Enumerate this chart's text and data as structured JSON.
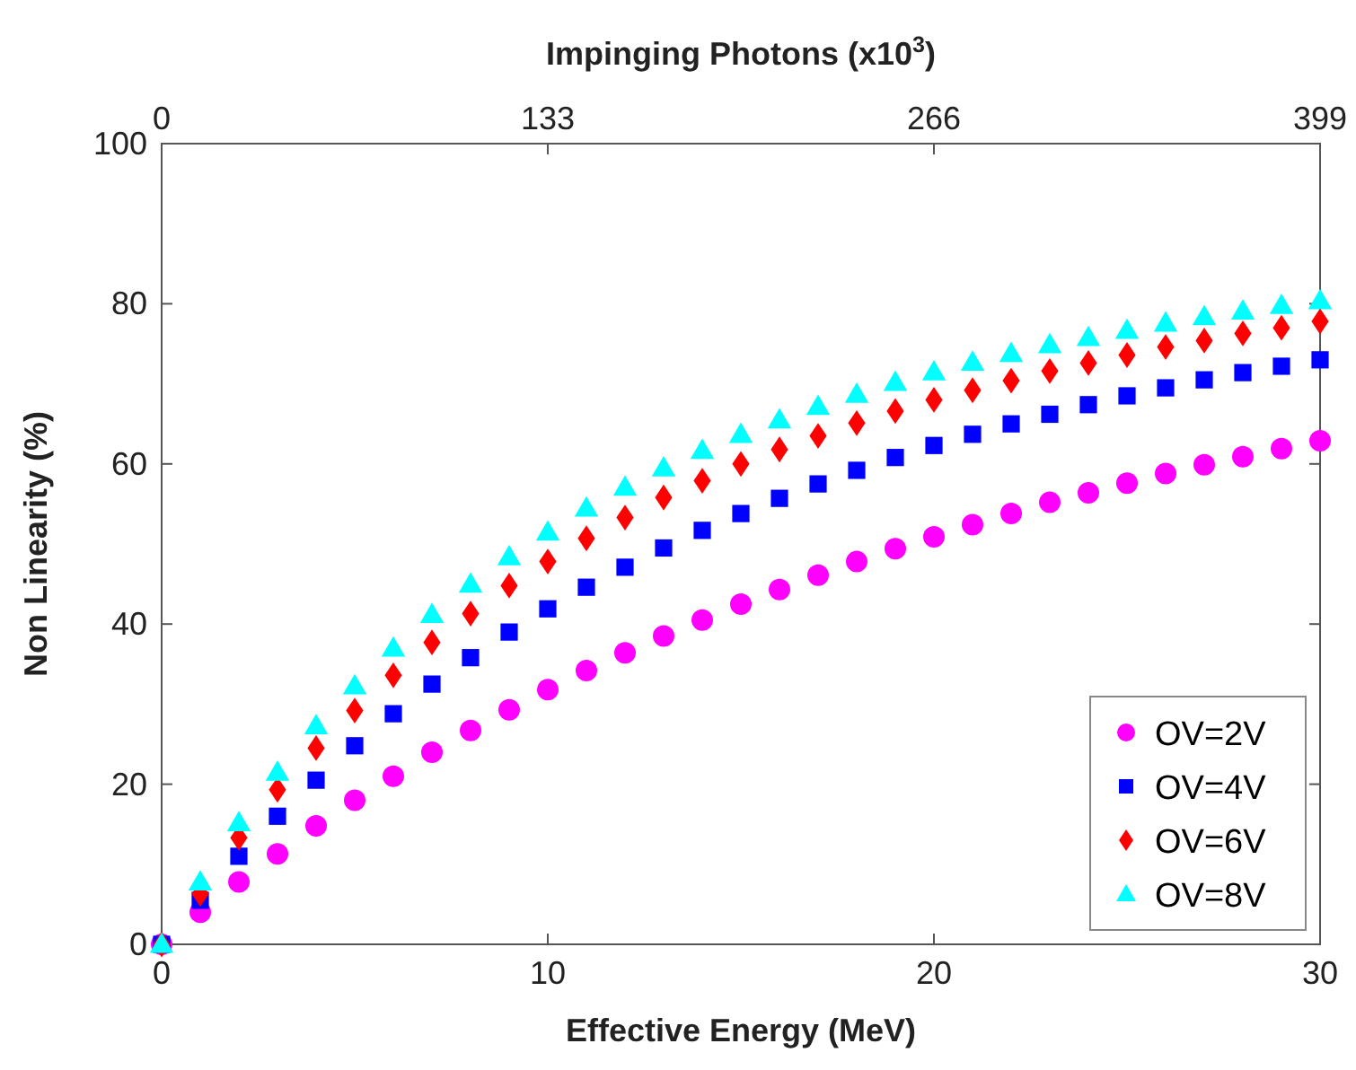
{
  "chart_data": {
    "type": "scatter",
    "xlabel": "Effective Energy (MeV)",
    "ylabel": "Non Linearity (%)",
    "x2label": "Impinging Photons (x10$^{3}$)",
    "x": [
      0,
      1,
      2,
      3,
      4,
      5,
      6,
      7,
      8,
      9,
      10,
      11,
      12,
      13,
      14,
      15,
      16,
      17,
      18,
      19,
      20,
      21,
      22,
      23,
      24,
      25,
      26,
      27,
      28,
      29,
      30
    ],
    "xlim": [
      0,
      30
    ],
    "xticks": [
      0,
      10,
      20,
      30
    ],
    "ylim": [
      0,
      100
    ],
    "yticks": [
      0,
      20,
      40,
      60,
      80,
      100
    ],
    "x2lim": [
      0,
      399
    ],
    "x2ticks": [
      0,
      133,
      266,
      399
    ],
    "grid": false,
    "legend": "bottom right",
    "series": [
      {
        "name": "OV=2V",
        "color": "#ff00ff",
        "marker": "circle",
        "values": [
          0,
          4,
          7.8,
          11.3,
          14.8,
          18,
          21,
          24,
          26.7,
          29.3,
          31.8,
          34.2,
          36.4,
          38.5,
          40.5,
          42.5,
          44.3,
          46.1,
          47.8,
          49.4,
          50.9,
          52.4,
          53.8,
          55.2,
          56.4,
          57.6,
          58.8,
          59.9,
          60.9,
          61.9,
          62.9
        ]
      },
      {
        "name": "OV=4V",
        "color": "#0000ff",
        "marker": "square",
        "values": [
          0,
          5.5,
          11,
          16,
          20.5,
          24.8,
          28.8,
          32.5,
          35.8,
          39,
          41.9,
          44.6,
          47.1,
          49.5,
          51.7,
          53.8,
          55.7,
          57.5,
          59.2,
          60.8,
          62.3,
          63.7,
          65,
          66.2,
          67.4,
          68.5,
          69.5,
          70.5,
          71.4,
          72.2,
          73
        ]
      },
      {
        "name": "OV=6V",
        "color": "#ff0000",
        "marker": "diamond",
        "values": [
          0,
          6.3,
          13.3,
          19.3,
          24.5,
          29.2,
          33.6,
          37.7,
          41.3,
          44.8,
          47.8,
          50.7,
          53.3,
          55.8,
          57.9,
          60,
          61.8,
          63.5,
          65.1,
          66.6,
          68,
          69.2,
          70.4,
          71.6,
          72.6,
          73.6,
          74.6,
          75.4,
          76.3,
          77,
          77.8
        ]
      },
      {
        "name": "OV=8V",
        "color": "#00ffff",
        "marker": "triangle",
        "values": [
          0,
          7.8,
          15.2,
          21.5,
          27.3,
          32.3,
          37,
          41.2,
          45,
          48.4,
          51.5,
          54.5,
          57.1,
          59.5,
          61.7,
          63.7,
          65.5,
          67.2,
          68.7,
          70.2,
          71.5,
          72.7,
          73.8,
          74.9,
          75.8,
          76.7,
          77.6,
          78.4,
          79.1,
          79.8,
          80.4
        ]
      }
    ]
  }
}
